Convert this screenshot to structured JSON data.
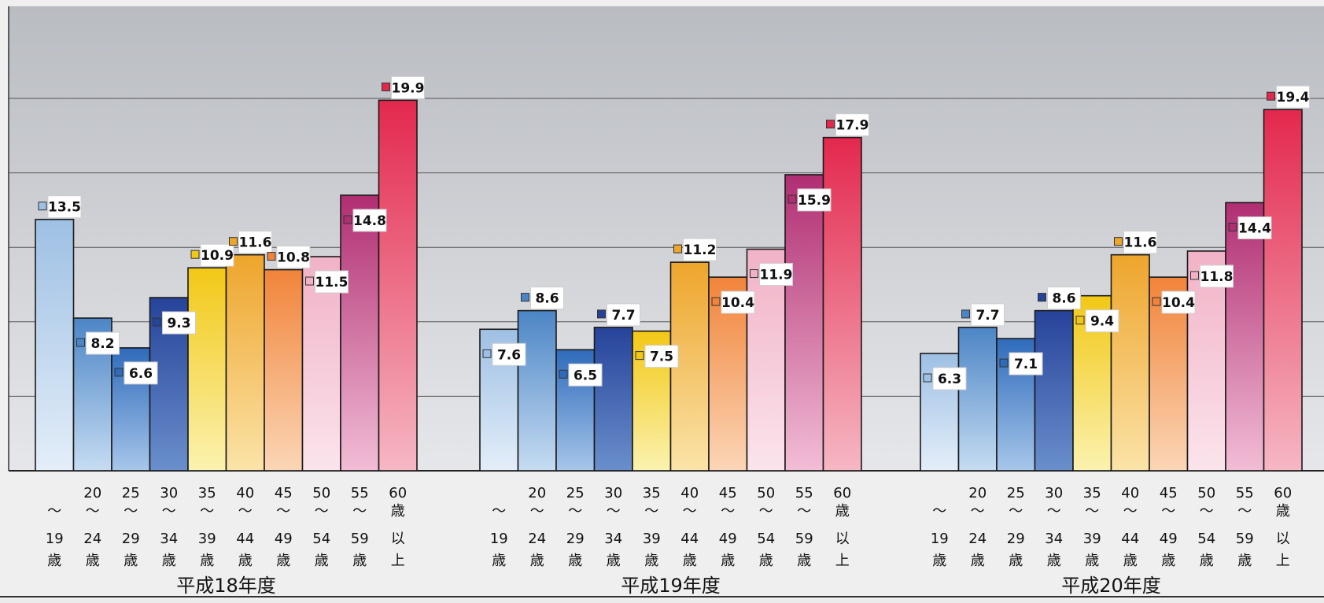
{
  "chart_data": {
    "type": "bar",
    "ylim": [
      0,
      20
    ],
    "grid": true,
    "legend": "none",
    "groups": [
      {
        "label": "平成18年度",
        "values": [
          13.5,
          8.2,
          6.6,
          9.3,
          10.9,
          11.6,
          10.8,
          11.5,
          14.8,
          19.9
        ]
      },
      {
        "label": "平成19年度",
        "values": [
          7.6,
          8.6,
          6.5,
          7.7,
          7.5,
          11.2,
          10.4,
          11.9,
          15.9,
          17.9
        ]
      },
      {
        "label": "平成20年度",
        "values": [
          6.3,
          7.7,
          7.1,
          8.6,
          9.4,
          11.6,
          10.4,
          11.8,
          14.4,
          19.4
        ]
      }
    ],
    "categories": [
      {
        "top": "",
        "tilde": "〜",
        "bottom": "19",
        "unit": "歳"
      },
      {
        "top": "20",
        "tilde": "〜",
        "bottom": "24",
        "unit": "歳"
      },
      {
        "top": "25",
        "tilde": "〜",
        "bottom": "29",
        "unit": "歳"
      },
      {
        "top": "30",
        "tilde": "〜",
        "bottom": "34",
        "unit": "歳"
      },
      {
        "top": "35",
        "tilde": "〜",
        "bottom": "39",
        "unit": "歳"
      },
      {
        "top": "40",
        "tilde": "〜",
        "bottom": "44",
        "unit": "歳"
      },
      {
        "top": "45",
        "tilde": "〜",
        "bottom": "49",
        "unit": "歳"
      },
      {
        "top": "50",
        "tilde": "〜",
        "bottom": "54",
        "unit": "歳"
      },
      {
        "top": "55",
        "tilde": "〜",
        "bottom": "59",
        "unit": "歳"
      },
      {
        "top": "60",
        "tilde": "歳",
        "bottom": "以",
        "unit": "上"
      }
    ],
    "bar_colors": [
      [
        "#e4eef9",
        "#9ec0e4"
      ],
      [
        "#c6dcf2",
        "#4c85c6"
      ],
      [
        "#a7c6ea",
        "#2f6bbb"
      ],
      [
        "#6a8fcc",
        "#26439a"
      ],
      [
        "#fbf2b0",
        "#f2c816"
      ],
      [
        "#fbe3a8",
        "#eea52c"
      ],
      [
        "#fbd6b6",
        "#f1843a"
      ],
      [
        "#fbe4ec",
        "#f1b2c6"
      ],
      [
        "#f2bdd6",
        "#b02e72"
      ],
      [
        "#f6b7c3",
        "#e3284d"
      ]
    ]
  }
}
